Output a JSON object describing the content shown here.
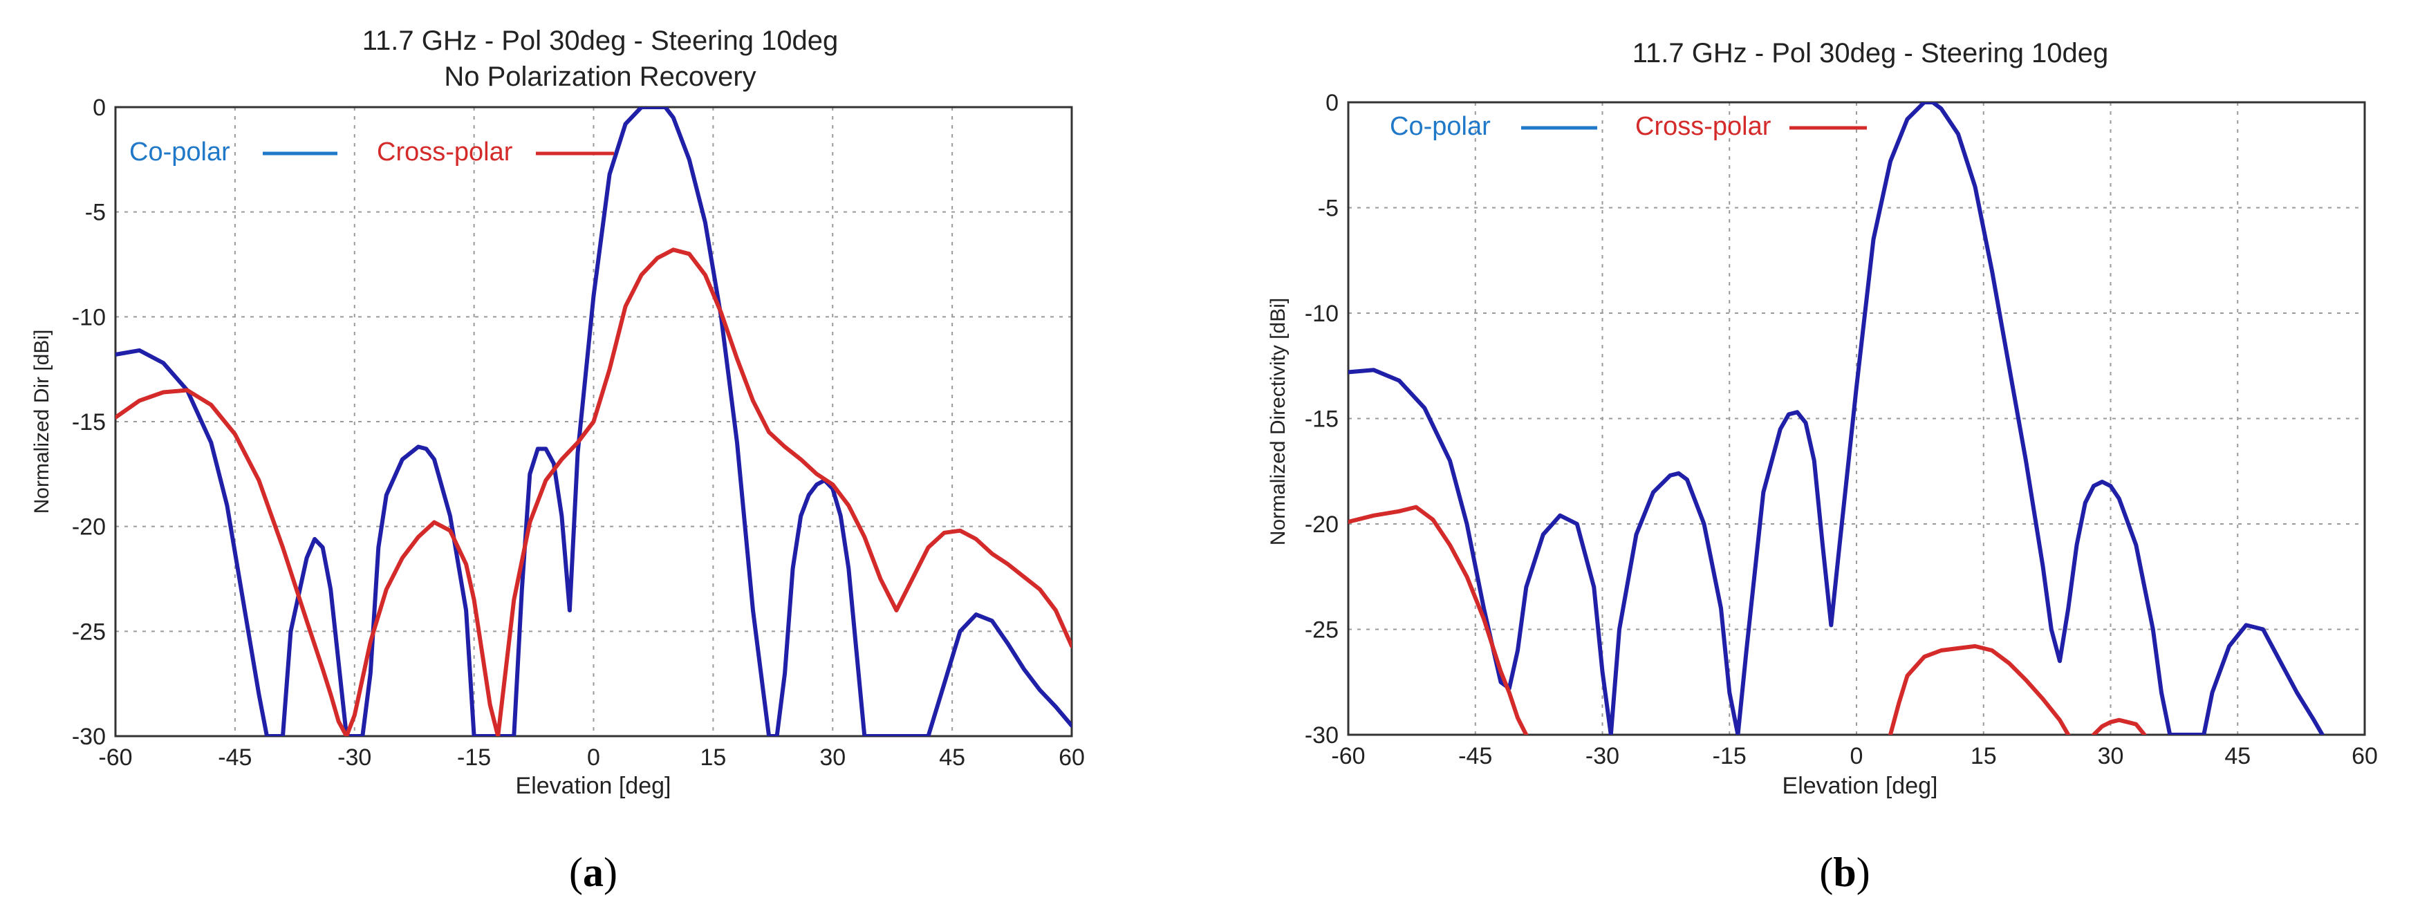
{
  "figure": {
    "panels": [
      {
        "caption_open": "(",
        "caption_letter": "a",
        "caption_close": ")",
        "colors": {
          "co_polar": "#1f1fa8",
          "cross_polar": "#d42a2a",
          "co_legend": "#1f78c8",
          "cross_legend": "#d42a2a"
        }
      },
      {
        "caption_open": "(",
        "caption_letter": "b",
        "caption_close": ")",
        "colors": {
          "co_polar": "#1f1fa8",
          "cross_polar": "#d42a2a",
          "co_legend": "#1f78c8",
          "cross_legend": "#d42a2a"
        }
      }
    ]
  },
  "chart_data": [
    {
      "type": "line",
      "title": "11.7 GHz - Pol 30deg - Steering 10deg",
      "subtitle": "No Polarization Recovery",
      "xlabel": "Elevation [deg]",
      "ylabel": "Normalized Dir [dBi]",
      "xlim": [
        -60,
        60
      ],
      "ylim": [
        -30,
        0
      ],
      "xticks": [
        -60,
        -45,
        -30,
        -15,
        0,
        15,
        30,
        45,
        60
      ],
      "yticks": [
        0,
        -5,
        -10,
        -15,
        -20,
        -25,
        -30
      ],
      "grid": true,
      "legend_position": "top-left",
      "series": [
        {
          "name": "Co-polar",
          "x": [
            -60,
            -57,
            -54,
            -51,
            -48,
            -46,
            -44,
            -42,
            -41,
            -40,
            -39,
            -38,
            -36,
            -35,
            -34,
            -33,
            -32,
            -31,
            -30,
            -29,
            -28,
            -27,
            -26,
            -24,
            -22,
            -21,
            -20,
            -18,
            -16,
            -15,
            -14,
            -13,
            -12,
            -11,
            -10,
            -9,
            -8,
            -7,
            -6,
            -5,
            -4,
            -3,
            -2,
            0,
            2,
            4,
            6,
            8,
            9,
            10,
            12,
            14,
            16,
            18,
            20,
            22,
            23,
            24,
            25,
            26,
            27,
            28,
            29,
            30,
            31,
            32,
            33,
            34,
            35,
            36,
            37,
            38,
            39,
            40,
            41,
            42,
            44,
            46,
            48,
            50,
            52,
            54,
            56,
            58,
            60
          ],
          "y": [
            -11.8,
            -11.6,
            -12.2,
            -13.5,
            -16.0,
            -19.0,
            -23.5,
            -28.0,
            -30,
            -30,
            -30,
            -25.0,
            -21.5,
            -20.6,
            -21.0,
            -23.0,
            -26.5,
            -30,
            -30,
            -30,
            -27.0,
            -21.0,
            -18.5,
            -16.8,
            -16.2,
            -16.3,
            -16.8,
            -19.5,
            -24.0,
            -30,
            -30,
            -30,
            -30,
            -30,
            -30,
            -23.0,
            -17.5,
            -16.3,
            -16.3,
            -17.0,
            -19.5,
            -24.0,
            -16.5,
            -9.0,
            -3.2,
            -0.8,
            0.0,
            0.0,
            0.0,
            -0.5,
            -2.5,
            -5.5,
            -10.0,
            -16.0,
            -24.0,
            -30,
            -30,
            -27.0,
            -22.0,
            -19.5,
            -18.5,
            -18.0,
            -17.8,
            -18.2,
            -19.5,
            -22.0,
            -26.0,
            -30,
            -30,
            -30,
            -30,
            -30,
            -30,
            -30,
            -30,
            -30,
            -27.5,
            -25.0,
            -24.2,
            -24.5,
            -25.6,
            -26.8,
            -27.8,
            -28.6,
            -29.5
          ]
        },
        {
          "name": "Cross-polar",
          "x": [
            -60,
            -57,
            -54,
            -51,
            -48,
            -45,
            -42,
            -39,
            -36,
            -34,
            -33,
            -32,
            -31,
            -30,
            -28,
            -26,
            -24,
            -22,
            -20,
            -18,
            -16,
            -15,
            -14,
            -13,
            -12,
            -10,
            -8,
            -6,
            -4,
            -2,
            0,
            2,
            4,
            6,
            8,
            10,
            12,
            14,
            16,
            18,
            20,
            22,
            24,
            26,
            28,
            30,
            32,
            34,
            36,
            38,
            40,
            42,
            44,
            46,
            48,
            50,
            52,
            54,
            56,
            58,
            60
          ],
          "y": [
            -14.8,
            -14.0,
            -13.6,
            -13.5,
            -14.2,
            -15.6,
            -17.8,
            -21.0,
            -24.5,
            -26.8,
            -28.0,
            -29.3,
            -30,
            -29.0,
            -25.5,
            -23.0,
            -21.5,
            -20.5,
            -19.8,
            -20.2,
            -21.8,
            -23.5,
            -26.0,
            -28.5,
            -30,
            -23.5,
            -19.8,
            -17.8,
            -16.8,
            -16.0,
            -15.0,
            -12.5,
            -9.5,
            -8.0,
            -7.2,
            -6.8,
            -7.0,
            -8.0,
            -9.8,
            -12.0,
            -14.0,
            -15.5,
            -16.2,
            -16.8,
            -17.5,
            -18.0,
            -19.0,
            -20.5,
            -22.5,
            -24.0,
            -22.5,
            -21.0,
            -20.3,
            -20.2,
            -20.6,
            -21.3,
            -21.8,
            -22.4,
            -23.0,
            -24.0,
            -25.7
          ]
        }
      ]
    },
    {
      "type": "line",
      "title": "11.7 GHz - Pol 30deg - Steering 10deg",
      "subtitle": "",
      "xlabel": "Elevation [deg]",
      "ylabel": "Normalized Directivity [dBi]",
      "xlim": [
        -60,
        60
      ],
      "ylim": [
        -30,
        0
      ],
      "xticks": [
        -60,
        -45,
        -30,
        -15,
        0,
        15,
        30,
        45,
        60
      ],
      "yticks": [
        0,
        -5,
        -10,
        -15,
        -20,
        -25,
        -30
      ],
      "grid": true,
      "legend_position": "top-left",
      "series": [
        {
          "name": "Co-polar",
          "x": [
            -60,
            -57,
            -54,
            -51,
            -48,
            -46,
            -44,
            -42,
            -41,
            -40,
            -39,
            -37,
            -35,
            -33,
            -31,
            -30,
            -29,
            -28,
            -26,
            -24,
            -22,
            -21,
            -20,
            -18,
            -16,
            -15,
            -14,
            -13,
            -11,
            -9,
            -8,
            -7,
            -6,
            -5,
            -4,
            -3,
            -2,
            0,
            2,
            4,
            6,
            8,
            9,
            10,
            12,
            14,
            16,
            18,
            20,
            22,
            23,
            24,
            25,
            26,
            27,
            28,
            29,
            30,
            31,
            33,
            35,
            36,
            37,
            38,
            40,
            41,
            42,
            44,
            46,
            48,
            50,
            52,
            54,
            55
          ],
          "y": [
            -12.8,
            -12.7,
            -13.2,
            -14.5,
            -17.0,
            -20.0,
            -24.0,
            -27.5,
            -27.8,
            -26.0,
            -23.0,
            -20.5,
            -19.6,
            -20.0,
            -23.0,
            -27.0,
            -30,
            -25.0,
            -20.5,
            -18.5,
            -17.7,
            -17.6,
            -17.9,
            -20.0,
            -24.0,
            -28.0,
            -30,
            -26.0,
            -18.5,
            -15.5,
            -14.8,
            -14.7,
            -15.2,
            -17.0,
            -21.0,
            -24.8,
            -21.0,
            -13.5,
            -6.5,
            -2.8,
            -0.8,
            0.0,
            0.0,
            -0.3,
            -1.5,
            -4.0,
            -8.0,
            -12.5,
            -17.0,
            -22.0,
            -25.0,
            -26.5,
            -24.0,
            -21.0,
            -19.0,
            -18.2,
            -18.0,
            -18.2,
            -18.8,
            -21.0,
            -25.0,
            -28.0,
            -30,
            -30,
            -30,
            -30,
            -28.0,
            -25.8,
            -24.8,
            -25.0,
            -26.5,
            -28.0,
            -29.3,
            -30
          ]
        },
        {
          "name": "Cross-polar",
          "segments": [
            {
              "x": [
                -60,
                -57,
                -54,
                -52,
                -50,
                -48,
                -46,
                -44,
                -42,
                -41,
                -40,
                -39
              ],
              "y": [
                -19.9,
                -19.6,
                -19.4,
                -19.2,
                -19.8,
                -21.0,
                -22.5,
                -24.5,
                -27.0,
                -28.0,
                -29.2,
                -30
              ]
            },
            {
              "x": [
                4,
                5,
                6,
                8,
                10,
                12,
                14,
                16,
                18,
                20,
                22,
                24,
                25
              ],
              "y": [
                -30,
                -28.5,
                -27.2,
                -26.3,
                -26.0,
                -25.9,
                -25.8,
                -26.0,
                -26.6,
                -27.4,
                -28.3,
                -29.3,
                -30
              ]
            },
            {
              "x": [
                28,
                29,
                30,
                31,
                32,
                33,
                34
              ],
              "y": [
                -30,
                -29.6,
                -29.4,
                -29.3,
                -29.4,
                -29.5,
                -30
              ]
            }
          ]
        }
      ]
    }
  ]
}
